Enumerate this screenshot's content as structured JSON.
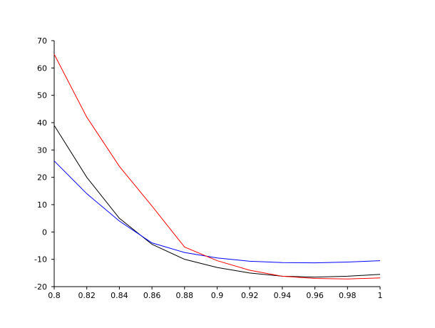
{
  "chart_data": {
    "type": "line",
    "x": [
      0.8,
      0.82,
      0.84,
      0.86,
      0.88,
      0.9,
      0.92,
      0.94,
      0.96,
      0.98,
      1
    ],
    "series": [
      {
        "color": "#000000",
        "values": [
          39,
          20,
          5,
          -4.5,
          -10,
          -13,
          -15,
          -16.2,
          -16.5,
          -16.2,
          -15.5
        ]
      },
      {
        "color": "#0000ff",
        "values": [
          26,
          14,
          4,
          -4,
          -7.5,
          -9.5,
          -10.7,
          -11.2,
          -11.3,
          -11,
          -10.5
        ]
      },
      {
        "color": "#ff0000",
        "values": [
          65,
          42,
          24,
          9.5,
          -5.5,
          -10.5,
          -14,
          -16.2,
          -17,
          -17.2,
          -16.8
        ]
      }
    ],
    "xlim": [
      0.8,
      1
    ],
    "ylim": [
      -20,
      70
    ],
    "xticks": [
      0.8,
      0.82,
      0.84,
      0.86,
      0.88,
      0.9,
      0.92,
      0.94,
      0.96,
      0.98,
      1
    ],
    "yticks": [
      -20,
      -10,
      0,
      10,
      20,
      30,
      40,
      50,
      60,
      70
    ]
  }
}
